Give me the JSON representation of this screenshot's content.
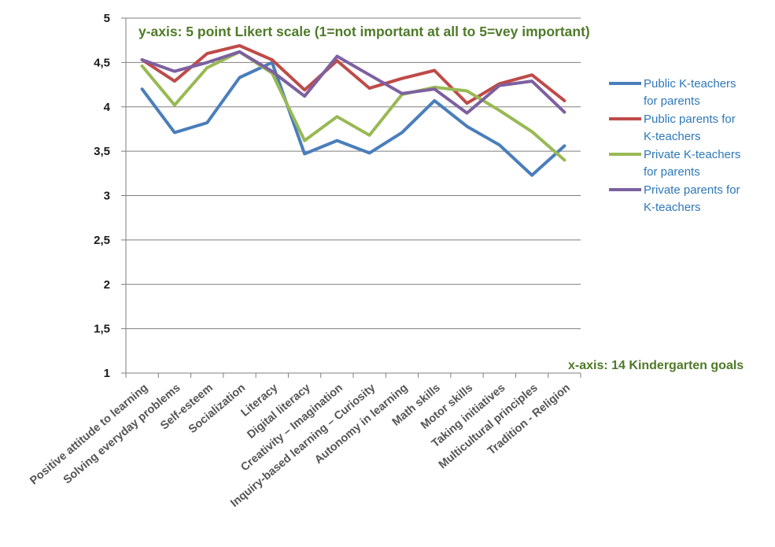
{
  "chart_data": {
    "type": "line",
    "title": "",
    "annotations": {
      "y_axis_note": "y-axis: 5 point Likert scale (1=not important at all to 5=vey important)",
      "x_axis_note": "x-axis: 14 Kindergarten goals"
    },
    "ylim": [
      1,
      5
    ],
    "yticks": [
      "1",
      "1,5",
      "2",
      "2,5",
      "3",
      "3,5",
      "4",
      "4,5",
      "5"
    ],
    "ytick_values": [
      1,
      1.5,
      2,
      2.5,
      3,
      3.5,
      4,
      4.5,
      5
    ],
    "grid": true,
    "legend_position": "right",
    "categories": [
      "Positive attitude to learning",
      "Solving everyday problems",
      "Self-esteem",
      "Socialization",
      "Literacy",
      "Digital literacy",
      "Creativity – Imagination",
      "Inquiry-based learning – Curiosity",
      "Autonomy in learning",
      "Math skills",
      "Motor skills",
      "Taking initiatives",
      "Multicultural principles",
      "Tradition - Religion"
    ],
    "series": [
      {
        "name": "Public K-teachers for parents",
        "legend_lines": [
          "Public K-teachers",
          "for parents"
        ],
        "color": "#4a7ebb",
        "values": [
          4.2,
          3.71,
          3.82,
          4.33,
          4.5,
          3.47,
          3.62,
          3.48,
          3.71,
          4.07,
          3.78,
          3.57,
          3.23,
          3.56
        ]
      },
      {
        "name": "Public parents for K-teachers",
        "legend_lines": [
          "Public parents for",
          "K-teachers"
        ],
        "color": "#be4b48",
        "values": [
          4.53,
          4.29,
          4.6,
          4.69,
          4.53,
          4.19,
          4.52,
          4.21,
          4.32,
          4.41,
          4.04,
          4.26,
          4.36,
          4.07
        ]
      },
      {
        "name": "Private K-teachers for parents",
        "legend_lines": [
          "Private K-teachers",
          "for parents"
        ],
        "color": "#98b954",
        "values": [
          4.46,
          4.02,
          4.44,
          4.62,
          4.38,
          3.62,
          3.89,
          3.68,
          4.14,
          4.22,
          4.18,
          3.96,
          3.72,
          3.4
        ]
      },
      {
        "name": "Private parents for K-teachers",
        "legend_lines": [
          "Private parents for",
          "K-teachers"
        ],
        "color": "#7d60a0",
        "values": [
          4.53,
          4.4,
          4.5,
          4.62,
          4.4,
          4.12,
          4.57,
          4.36,
          4.15,
          4.2,
          3.93,
          4.24,
          4.29,
          3.94
        ]
      }
    ]
  }
}
